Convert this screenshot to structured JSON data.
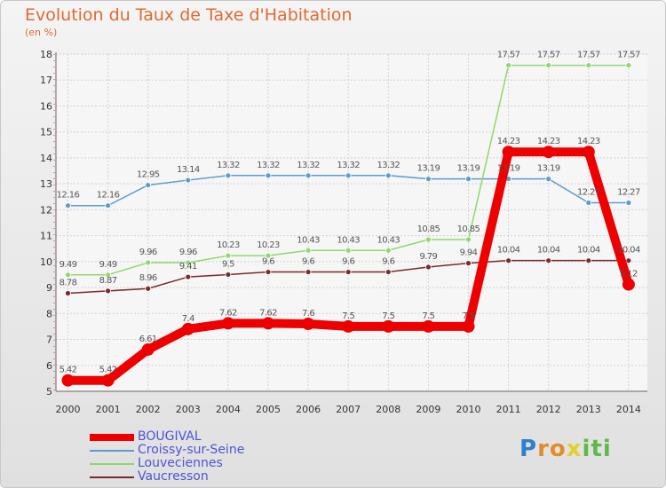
{
  "header": {
    "title": "Evolution du Taux de Taxe d'Habitation",
    "subtitle": "(en %)"
  },
  "logo": {
    "letters": [
      {
        "ch": "P",
        "color": "#2f7fd0"
      },
      {
        "ch": "r",
        "color": "#e28b2d"
      },
      {
        "ch": "o",
        "color": "#e28b2d"
      },
      {
        "ch": "x",
        "color": "#e2d12d"
      },
      {
        "ch": "i",
        "color": "#60b84a"
      },
      {
        "ch": "t",
        "color": "#60b84a"
      },
      {
        "ch": "i",
        "color": "#60b84a"
      }
    ]
  },
  "chart_data": {
    "type": "line",
    "title": "Evolution du Taux de Taxe d'Habitation",
    "ylabel": "(en %)",
    "x": [
      2000,
      2001,
      2002,
      2003,
      2004,
      2005,
      2006,
      2007,
      2008,
      2009,
      2010,
      2011,
      2012,
      2013,
      2014
    ],
    "ylim": [
      5,
      18
    ],
    "yticks": [
      5,
      6,
      7,
      8,
      9,
      10,
      11,
      12,
      13,
      14,
      15,
      16,
      17,
      18
    ],
    "grid": true,
    "legend_position": "bottom-left",
    "series": [
      {
        "name": "BOUGIVAL",
        "color": "#ee0000",
        "emphasis": true,
        "values": [
          5.42,
          5.42,
          6.61,
          7.4,
          7.62,
          7.62,
          7.6,
          7.5,
          7.5,
          7.5,
          7.5,
          14.23,
          14.23,
          14.23,
          9.12
        ],
        "labels": [
          "5.42",
          "5.42",
          "6.61",
          "7.4",
          "7.62",
          "7.62",
          "7.6",
          "7.5",
          "7.5",
          "7.5",
          "7.5",
          "14.23",
          "14.23",
          "14.23",
          "9.12"
        ]
      },
      {
        "name": "Croissy-sur-Seine",
        "color": "#5b9bd0",
        "values": [
          12.16,
          12.16,
          12.95,
          13.14,
          13.32,
          13.32,
          13.32,
          13.32,
          13.32,
          13.19,
          13.19,
          13.19,
          13.19,
          12.27,
          12.27
        ],
        "labels": [
          "12.16",
          "12.16",
          "12.95",
          "13.14",
          "13.32",
          "13.32",
          "13.32",
          "13.32",
          "13.32",
          "13.19",
          "13.19",
          "13.19",
          "13.19",
          "12.27",
          "12.27"
        ]
      },
      {
        "name": "Louveciennes",
        "color": "#8fd86a",
        "values": [
          9.49,
          9.49,
          9.96,
          9.96,
          10.23,
          10.23,
          10.43,
          10.43,
          10.43,
          10.85,
          10.85,
          17.57,
          17.57,
          17.57,
          17.57
        ],
        "labels": [
          "9.49",
          "9.49",
          "9.96",
          "9.96",
          "10.23",
          "10.23",
          "10.43",
          "10.43",
          "10.43",
          "10.85",
          "10.85",
          "17.57",
          "17.57",
          "17.57",
          "17.57"
        ]
      },
      {
        "name": "Vaucresson",
        "color": "#7a2a2a",
        "values": [
          8.78,
          8.87,
          8.96,
          9.41,
          9.5,
          9.6,
          9.6,
          9.6,
          9.6,
          9.79,
          9.94,
          10.04,
          10.04,
          10.04,
          10.04
        ],
        "labels": [
          "8.78",
          "8.87",
          "8.96",
          "9.41",
          "9.5",
          "9.6",
          "9.6",
          "9.6",
          "9.6",
          "9.79",
          "9.94",
          "10.04",
          "10.04",
          "10.04",
          "10.04"
        ]
      }
    ]
  }
}
